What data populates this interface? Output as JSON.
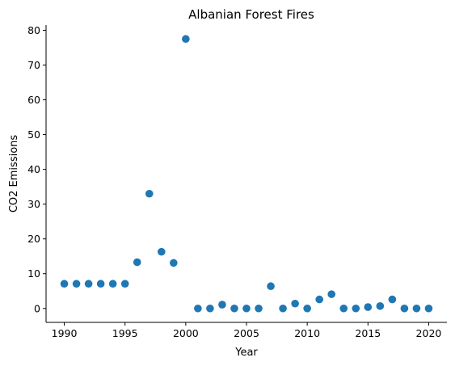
{
  "chart_data": {
    "type": "scatter",
    "title": "Albanian Forest Fires",
    "xlabel": "Year",
    "ylabel": "CO2 Emissions",
    "xlim": [
      1988.5,
      2021.5
    ],
    "ylim": [
      -4,
      81.5
    ],
    "xticks": [
      1990,
      1995,
      2000,
      2005,
      2010,
      2015,
      2020
    ],
    "yticks": [
      0,
      10,
      20,
      30,
      40,
      50,
      60,
      70,
      80
    ],
    "grid": false,
    "color": "#1f77b4",
    "points": [
      {
        "x": 1990,
        "y": 7.1
      },
      {
        "x": 1991,
        "y": 7.1
      },
      {
        "x": 1992,
        "y": 7.1
      },
      {
        "x": 1993,
        "y": 7.1
      },
      {
        "x": 1994,
        "y": 7.1
      },
      {
        "x": 1995,
        "y": 7.1
      },
      {
        "x": 1996,
        "y": 13.3
      },
      {
        "x": 1997,
        "y": 33.0
      },
      {
        "x": 1998,
        "y": 16.3
      },
      {
        "x": 1999,
        "y": 13.1
      },
      {
        "x": 2000,
        "y": 77.5
      },
      {
        "x": 2001,
        "y": 0.0
      },
      {
        "x": 2002,
        "y": 0.0
      },
      {
        "x": 2003,
        "y": 1.1
      },
      {
        "x": 2004,
        "y": 0.0
      },
      {
        "x": 2005,
        "y": 0.0
      },
      {
        "x": 2006,
        "y": 0.0
      },
      {
        "x": 2007,
        "y": 6.4
      },
      {
        "x": 2008,
        "y": 0.0
      },
      {
        "x": 2009,
        "y": 1.4
      },
      {
        "x": 2010,
        "y": 0.0
      },
      {
        "x": 2011,
        "y": 2.6
      },
      {
        "x": 2012,
        "y": 4.1
      },
      {
        "x": 2013,
        "y": 0.0
      },
      {
        "x": 2014,
        "y": 0.0
      },
      {
        "x": 2015,
        "y": 0.4
      },
      {
        "x": 2016,
        "y": 0.7
      },
      {
        "x": 2017,
        "y": 2.6
      },
      {
        "x": 2018,
        "y": 0.0
      },
      {
        "x": 2019,
        "y": 0.0
      },
      {
        "x": 2020,
        "y": 0.0
      }
    ]
  }
}
